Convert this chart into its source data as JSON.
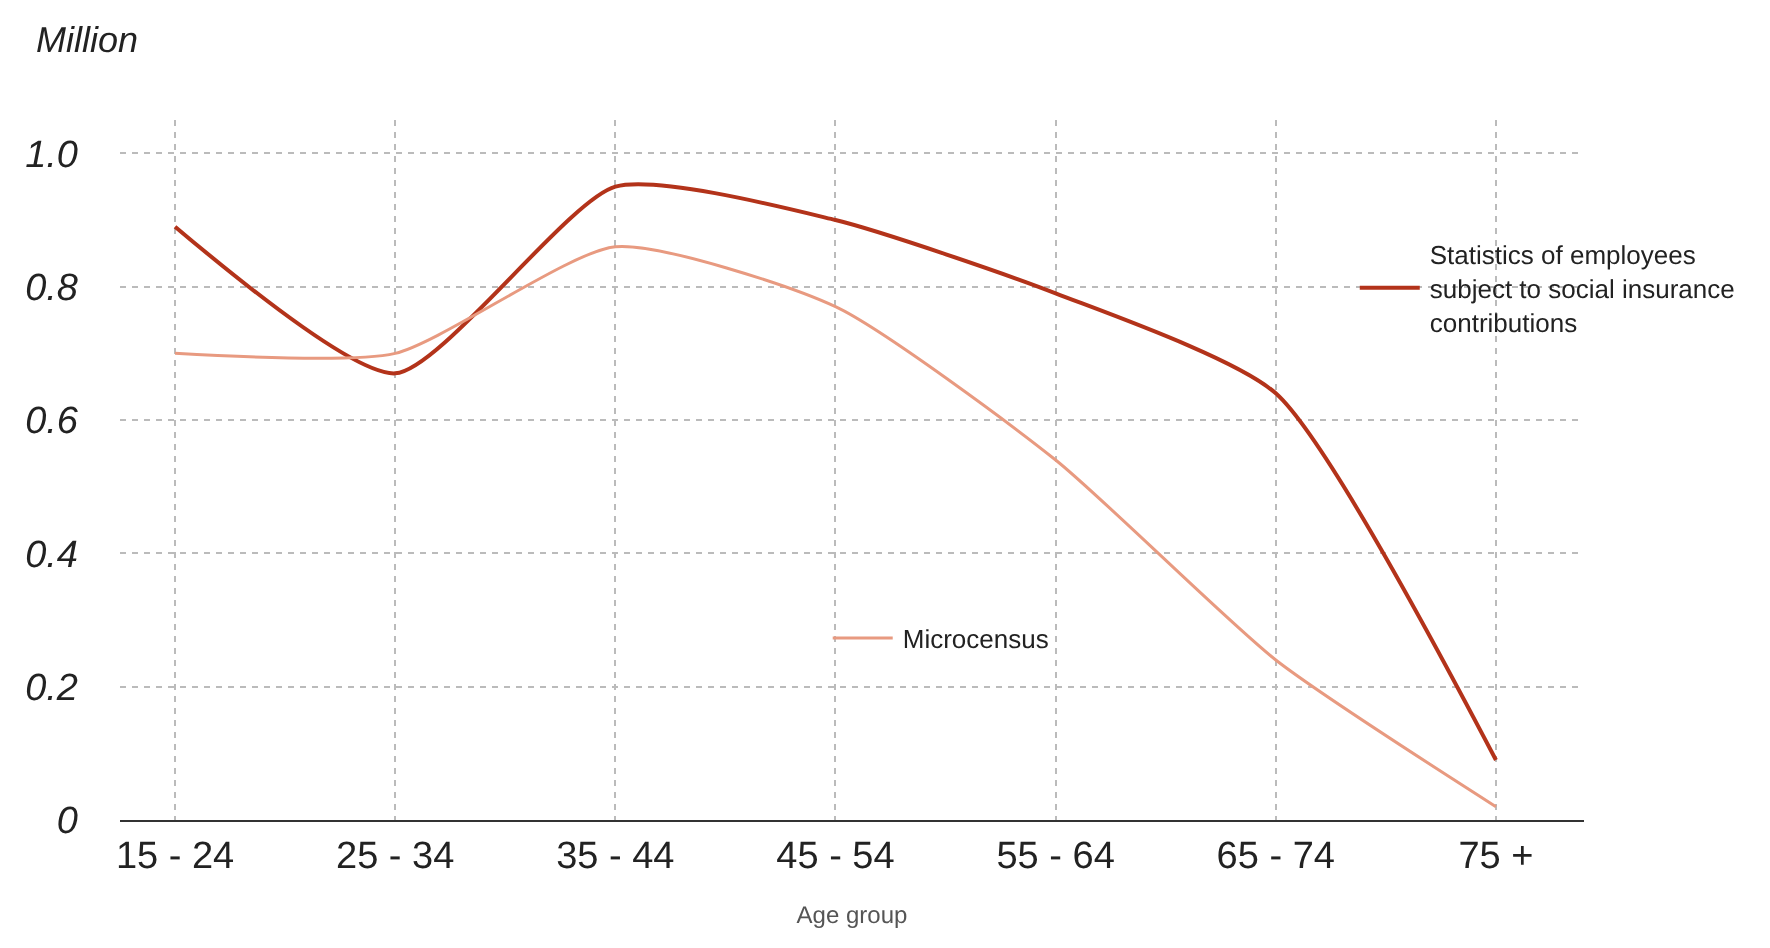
{
  "chart_data": {
    "type": "line",
    "ylabel": "Million",
    "xlabel": "Age group",
    "categories": [
      "15 - 24",
      "25 - 34",
      "35 - 44",
      "45 - 54",
      "55 - 64",
      "65 - 74",
      "75 +"
    ],
    "series": [
      {
        "name": "Statistics of employees subject to social insurance contributions",
        "color": "#b3331a",
        "values": [
          0.89,
          0.67,
          0.95,
          0.9,
          0.79,
          0.64,
          0.09
        ]
      },
      {
        "name": "Microcensus",
        "color": "#e89a80",
        "values": [
          0.7,
          0.7,
          0.86,
          0.77,
          0.54,
          0.24,
          0.02
        ]
      }
    ],
    "ylim": [
      0,
      1.05
    ],
    "yticks": [
      {
        "value": 0,
        "label": "0"
      },
      {
        "value": 0.2,
        "label": "0.2"
      },
      {
        "value": 0.4,
        "label": "0.4"
      },
      {
        "value": 0.6,
        "label": "0.6"
      },
      {
        "value": 0.8,
        "label": "0.8"
      },
      {
        "value": 1,
        "label": "1.0"
      }
    ],
    "grid": true,
    "legend": "right",
    "marker": "none",
    "line_style": "solid"
  }
}
